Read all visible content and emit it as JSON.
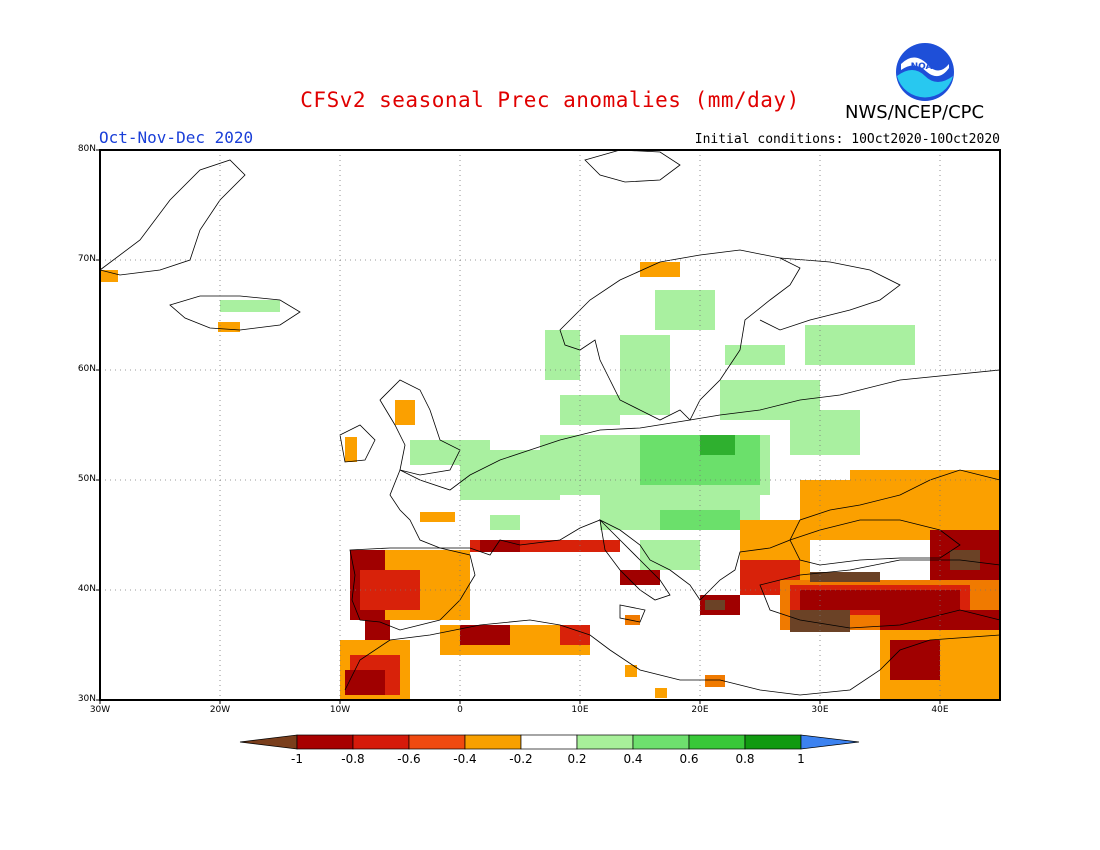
{
  "title": "CFSv2 seasonal Prec anomalies (mm/day)",
  "agency": "NWS/NCEP/CPC",
  "season": "Oct-Nov-Dec 2020",
  "init": "Initial conditions: 10Oct2020-10Oct2020",
  "logo_text": "NOAA",
  "lat_labels": [
    "80N",
    "70N",
    "60N",
    "50N",
    "40N",
    "30N"
  ],
  "lon_labels": [
    "30W",
    "20W",
    "10W",
    "0",
    "10E",
    "20E",
    "30E",
    "40E"
  ],
  "colorbar": {
    "labels": [
      "-1",
      "-0.8",
      "-0.6",
      "-0.4",
      "-0.2",
      "0.2",
      "0.4",
      "0.6",
      "0.8",
      "1"
    ],
    "colors": [
      "#7a3e1c",
      "#a80000",
      "#d61a0a",
      "#f04a10",
      "#f8a000",
      "#ffffff",
      "#a8f09a",
      "#6ee06e",
      "#38c838",
      "#109a10",
      "#3c82f0"
    ]
  },
  "colors": {
    "dry1": "#6b4226",
    "dry2": "#a00000",
    "dry3": "#d8220a",
    "dry4": "#f07a00",
    "dry5": "#fba000",
    "wet1": "#a9f0a0",
    "wet2": "#6be06b",
    "wet3": "#2fb02f"
  }
}
